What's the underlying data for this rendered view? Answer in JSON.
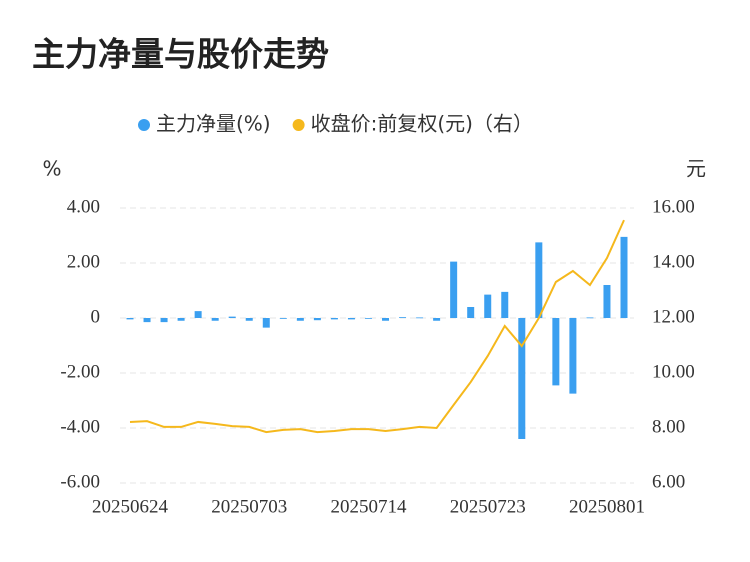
{
  "chart_data": {
    "type": "bar_line",
    "title": "主力净量与股价走势",
    "y_unit": "%",
    "y2_unit": "元",
    "categories": [
      "20250624",
      null,
      null,
      null,
      null,
      null,
      null,
      "20250703",
      null,
      null,
      null,
      null,
      null,
      null,
      "20250714",
      null,
      null,
      null,
      null,
      null,
      null,
      "20250723",
      null,
      null,
      null,
      null,
      null,
      null,
      "20250801",
      null
    ],
    "series": [
      {
        "name": "主力净量(%)",
        "type": "bar",
        "color": "#3a9ff0",
        "axis": "y",
        "values": [
          -0.05,
          -0.15,
          -0.15,
          -0.1,
          0.25,
          -0.1,
          0.05,
          -0.1,
          -0.35,
          -0.03,
          -0.1,
          -0.08,
          -0.05,
          -0.05,
          0,
          -0.1,
          0.03,
          0.02,
          -0.1,
          2.05,
          0.4,
          0.85,
          0.95,
          -4.4,
          2.75,
          -2.45,
          -2.75,
          0.02,
          1.2,
          2.95
        ]
      },
      {
        "name": "收盘价:前复权(元)（右）",
        "type": "line",
        "color": "#f5b81c",
        "axis": "y2",
        "values": [
          8.22,
          8.25,
          8.04,
          8.04,
          8.22,
          8.15,
          8.07,
          8.04,
          7.85,
          7.93,
          7.96,
          7.85,
          7.89,
          7.96,
          7.96,
          7.89,
          7.96,
          8.04,
          8.0,
          8.84,
          9.67,
          10.62,
          11.71,
          10.98,
          12.0,
          13.31,
          13.71,
          13.2,
          14.18,
          15.56
        ]
      }
    ],
    "ylim": [
      -6,
      4
    ],
    "yticks": [
      {
        "value": 4,
        "label": "4.00"
      },
      {
        "value": 2,
        "label": "2.00"
      },
      0,
      {
        "value": -2,
        "label": "-2.00"
      },
      {
        "value": -4,
        "label": "-4.00"
      },
      {
        "value": -6,
        "label": "-6.00"
      }
    ],
    "y2lim": [
      6,
      16
    ],
    "y2ticks": [
      {
        "value": 16,
        "label": "16.00"
      },
      {
        "value": 14,
        "label": "14.00"
      },
      {
        "value": 12,
        "label": "12.00"
      },
      {
        "value": 10,
        "label": "10.00"
      },
      {
        "value": 8,
        "label": "8.00"
      },
      {
        "value": 6,
        "label": "6.00"
      }
    ],
    "grid": true
  }
}
